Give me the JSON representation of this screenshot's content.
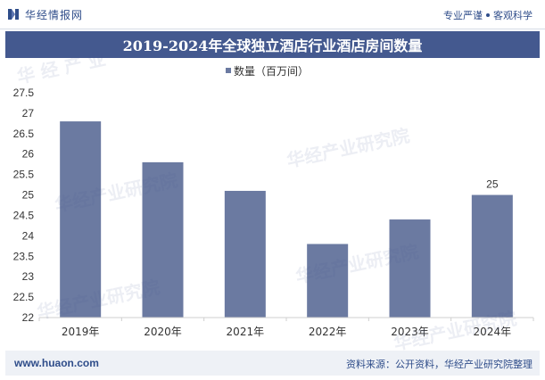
{
  "header": {
    "brand": "华经情报网",
    "tagline_left": "专业严谨",
    "tagline_right": "客观科学"
  },
  "footer": {
    "website": "www.huaon.com",
    "source": "资料来源：公开资料，华经产业研究院整理"
  },
  "colors": {
    "bar": "#6b7aa1",
    "title_bg": "#44598f",
    "brand": "#2f4d8a"
  },
  "chart_data": {
    "type": "bar",
    "title": "2019-2024年全球独立酒店行业酒店房间数量",
    "legend": "数量（百万间）",
    "legend_position": "top-center",
    "categories": [
      "2019年",
      "2020年",
      "2021年",
      "2022年",
      "2023年",
      "2024年"
    ],
    "values": [
      26.8,
      25.8,
      25.1,
      23.8,
      24.4,
      25.0
    ],
    "data_labels": [
      {
        "index": 5,
        "text": "25"
      }
    ],
    "ylim": [
      22,
      27.5
    ],
    "yticks": [
      "22",
      "22.5",
      "23",
      "23.5",
      "24",
      "24.5",
      "25",
      "25.5",
      "26",
      "26.5",
      "27",
      "27.5"
    ],
    "ytick_values": [
      22,
      22.5,
      23,
      23.5,
      24,
      24.5,
      25,
      25.5,
      26,
      26.5,
      27,
      27.5
    ],
    "xlabel": "",
    "ylabel": "",
    "grid": false
  }
}
